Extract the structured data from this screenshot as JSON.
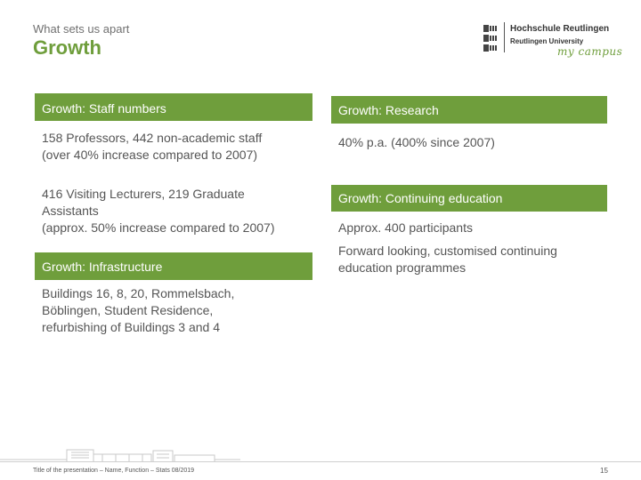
{
  "header": {
    "kicker": "What sets us apart",
    "title": "Growth"
  },
  "logo": {
    "name_line1": "Hochschule Reutlingen",
    "name_line2": "Reutlingen University",
    "tagline": "my campus"
  },
  "left_column": {
    "staff": {
      "heading": "Growth: Staff numbers",
      "para1_line1": "158 Professors, 442 non-academic staff",
      "para1_line2": "(over 40% increase compared to 2007)",
      "para2_line1": "416 Visiting Lecturers, 219 Graduate",
      "para2_line2": "Assistants",
      "para2_line3": "(approx. 50% increase compared to 2007)"
    },
    "infrastructure": {
      "heading": "Growth: Infrastructure",
      "line1": "Buildings 16, 8, 20, Rommelsbach,",
      "line2": "Böblingen, Student Residence,",
      "line3": "refurbishing of Buildings 3 and 4"
    }
  },
  "right_column": {
    "research": {
      "heading": "Growth: Research",
      "text": "40% p.a. (400% since 2007)"
    },
    "continuing": {
      "heading": "Growth: Continuing education",
      "text1": "Approx. 400 participants",
      "text2_line1": "Forward looking, customised continuing",
      "text2_line2": "education programmes"
    }
  },
  "footer": {
    "text": "Title of the presentation – Name, Function – Stats 08/2019",
    "page_number": "15"
  },
  "colors": {
    "accent_green": "#6f9e3c",
    "text_gray": "#555555"
  }
}
